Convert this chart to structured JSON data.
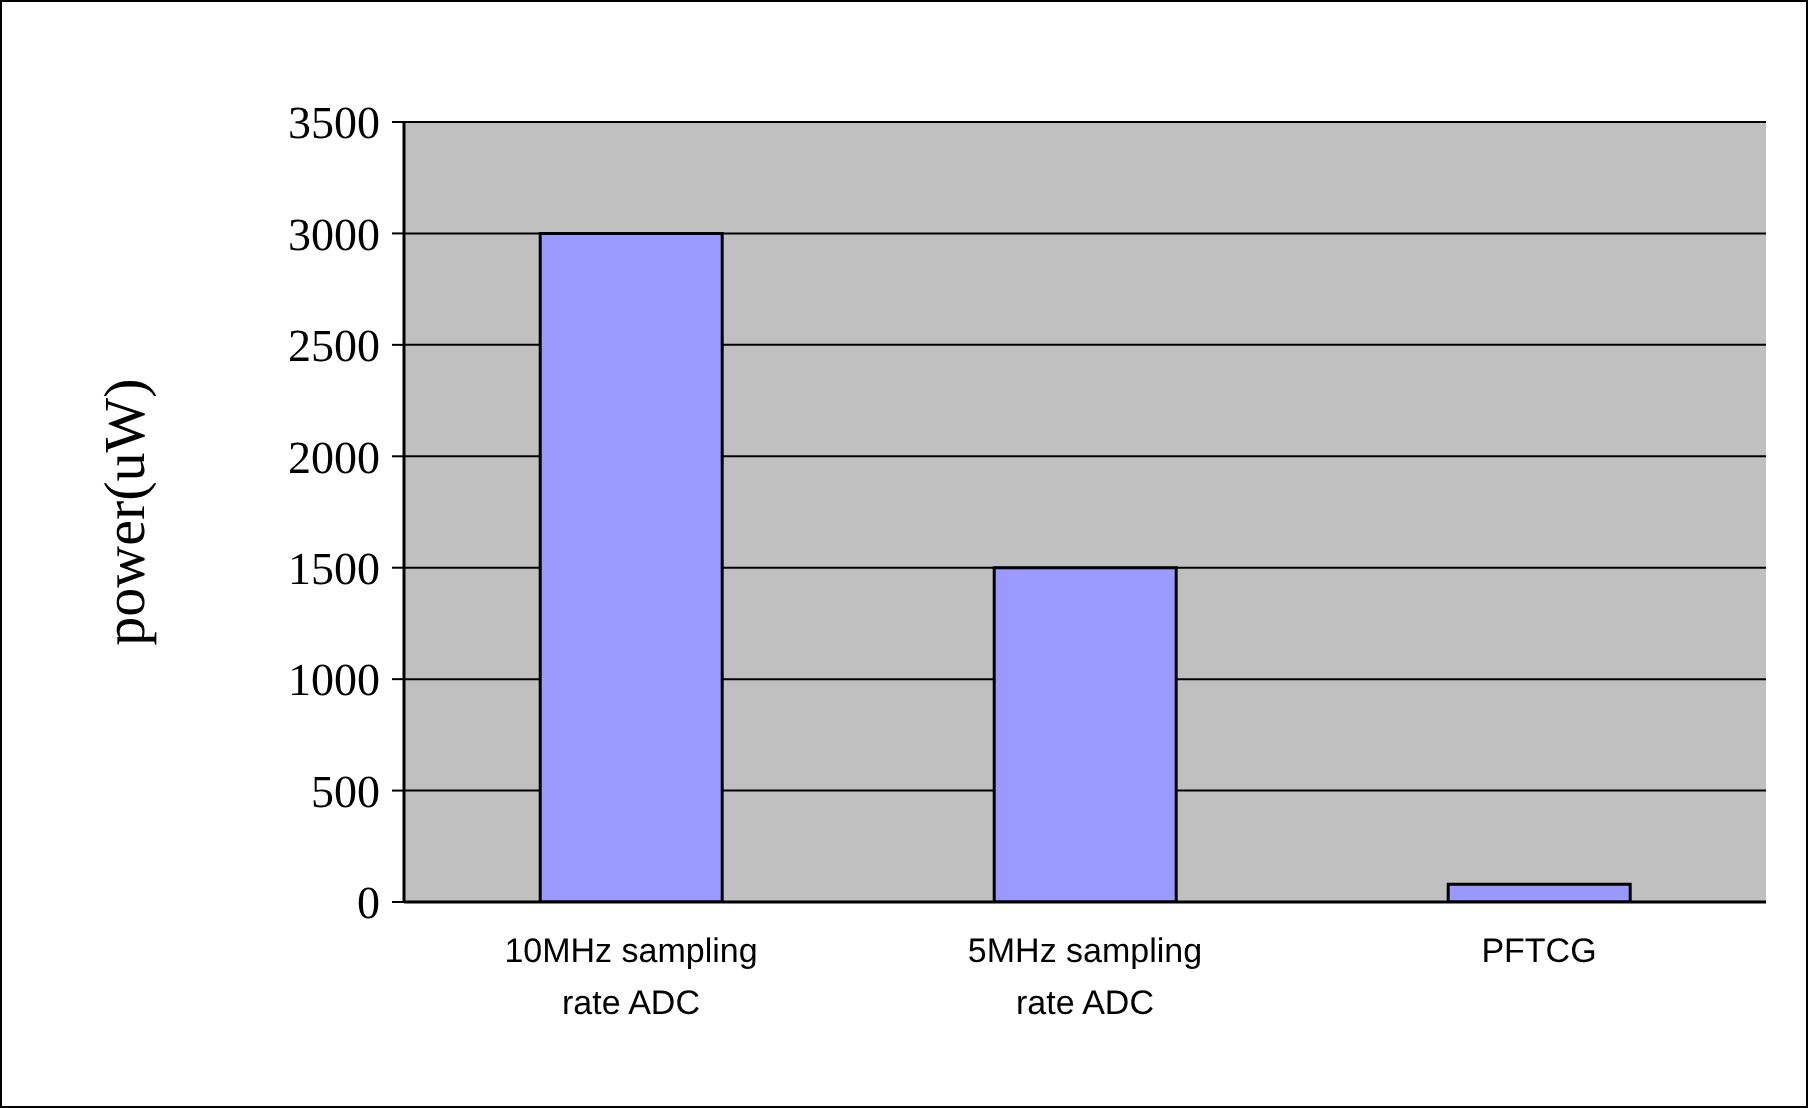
{
  "chart_data": {
    "type": "bar",
    "ylabel": "power(uW)",
    "categories": [
      "10MHz sampling\n rate ADC",
      "5MHz sampling\nrate ADC",
      "PFTCG"
    ],
    "values": [
      3000,
      1500,
      80
    ],
    "color": "#9999ff",
    "ylim": [
      0,
      3500
    ],
    "yticks": [
      0,
      500,
      1000,
      1500,
      2000,
      2500,
      3000,
      3500
    ],
    "grid": "y",
    "legend": false
  }
}
